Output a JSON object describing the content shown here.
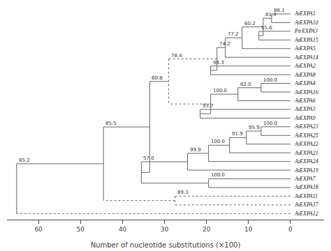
{
  "chart_data": {
    "type": "tree",
    "xlabel": "Number of nucleotide substitutions (×100)",
    "categories": [
      "AtEXPA1",
      "AtEXPA10",
      "PtrEXPA3",
      "AtEXPA15",
      "AtEXPA5",
      "AtEXPA14",
      "AtEXPA2",
      "AtEXPA8",
      "AtEXPA4",
      "AtEXPA16",
      "AtEXPA6",
      "AtEXPA3",
      "AtEXPA9",
      "AtEXPA23",
      "AtEXPA25",
      "AtEXPA22",
      "AtEXPA21",
      "AtEXPA24",
      "AtEXPA19",
      "AtEXPA7",
      "AtEXPA18",
      "AtEXPA11",
      "AtEXPA17",
      "AtEXPA12"
    ],
    "color": "#666666",
    "xlim": [
      67.5,
      -8.0
    ],
    "xticks": [
      0,
      10,
      20,
      30,
      40,
      50,
      60
    ],
    "grid": false,
    "tree": {
      "x": 65.2,
      "label": "65.2",
      "children": [
        {
          "x": 44.5,
          "label": "85.5",
          "children": [
            {
              "x": 33.5,
              "label": "60.8",
              "children": [
                {
                  "x": 29.0,
                  "label": "78.4",
                  "children": [
                    {
                      "x": 17.5,
                      "label": "74.2",
                      "line_style": "dotted",
                      "children": [
                        {
                          "x": 15.5,
                          "label": "77.2",
                          "children": [
                            {
                              "x": 11.5,
                              "label": "60.2",
                              "children": [
                                {
                                  "x": 6.5,
                                  "label": "81.4",
                                  "children": [
                                    {
                                      "x": 4.5,
                                      "label": "88.1",
                                      "children": [
                                        {
                                          "name": "AtEXPA1",
                                          "x": 0
                                        },
                                        {
                                          "name": "AtEXPA10",
                                          "x": 0
                                        }
                                      ]
                                    },
                                    {
                                      "x": 7.5,
                                      "label": "55.6",
                                      "children": [
                                        {
                                          "name": "PtrEXPA3",
                                          "x": 0
                                        },
                                        {
                                          "name": "AtEXPA15",
                                          "x": 0
                                        }
                                      ]
                                    }
                                  ]
                                },
                                {
                                  "name": "AtEXPA5",
                                  "x": 0
                                }
                              ]
                            },
                            {
                              "name": "AtEXPA14",
                              "x": 0
                            }
                          ]
                        },
                        {
                          "x": 19.0,
                          "label": "99.3",
                          "children": [
                            {
                              "name": "AtEXPA2",
                              "x": 0
                            },
                            {
                              "name": "AtEXPA8",
                              "x": 0
                            }
                          ]
                        }
                      ]
                    },
                    {
                      "x": 19.0,
                      "label": "100.0",
                      "line_style": "dotted",
                      "children": [
                        {
                          "x": 12.5,
                          "label": "82.0",
                          "children": [
                            {
                              "x": 7.0,
                              "label": "100.0",
                              "children": [
                                {
                                  "name": "AtEXPA4",
                                  "x": 0
                                },
                                {
                                  "name": "AtEXPA16",
                                  "x": 0
                                }
                              ]
                            },
                            {
                              "name": "AtEXPA6",
                              "x": 0
                            }
                          ]
                        },
                        {
                          "x": 21.5,
                          "label": "93.7",
                          "children": [
                            {
                              "name": "AtEXPA3",
                              "x": 0
                            },
                            {
                              "name": "AtEXPA9",
                              "x": 0
                            }
                          ]
                        }
                      ]
                    }
                  ]
                },
                {
                  "x": 35.5,
                  "label": "57.0",
                  "children": [
                    {
                      "x": 24.5,
                      "label": "99.9",
                      "children": [
                        {
                          "x": 19.5,
                          "label": "100.0",
                          "children": [
                            {
                              "x": 14.5,
                              "label": "91.9",
                              "children": [
                                {
                                  "x": 10.5,
                                  "label": "95.9",
                                  "children": [
                                    {
                                      "x": 7.0,
                                      "label": "100.0",
                                      "children": [
                                        {
                                          "name": "AtEXPA23",
                                          "x": 0
                                        },
                                        {
                                          "name": "AtEXPA25",
                                          "x": 0
                                        }
                                      ]
                                    },
                                    {
                                      "name": "AtEXPA22",
                                      "x": 0
                                    }
                                  ]
                                },
                                {
                                  "name": "AtEXPA21",
                                  "x": 0
                                }
                              ]
                            },
                            {
                              "name": "AtEXPA24",
                              "x": 0
                            }
                          ]
                        },
                        {
                          "name": "AtEXPA19",
                          "x": 0
                        }
                      ]
                    },
                    {
                      "x": 19.5,
                      "label": "100.0",
                      "children": [
                        {
                          "name": "AtEXPA7",
                          "x": 0
                        },
                        {
                          "name": "AtEXPA18",
                          "x": 0
                        }
                      ]
                    }
                  ]
                }
              ]
            },
            {
              "x": 27.5,
              "label": "89.3",
              "line_style": "dotted",
              "children": [
                {
                  "name": "AtEXPA11",
                  "x": 0,
                  "line_style": "dotted"
                },
                {
                  "name": "AtEXPA17",
                  "x": 0,
                  "line_style": "dotted"
                }
              ]
            }
          ]
        },
        {
          "name": "AtEXPA12",
          "x": 0,
          "line_style": "dotted"
        }
      ]
    }
  }
}
